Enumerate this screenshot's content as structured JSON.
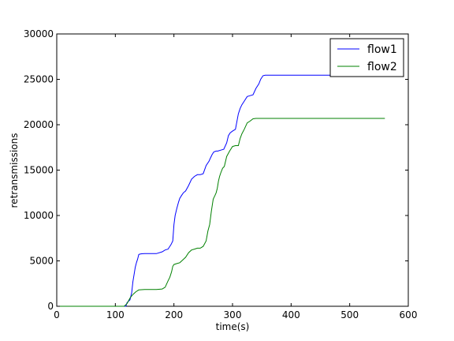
{
  "chart_data": {
    "type": "line",
    "title": "",
    "xlabel": "time(s)",
    "ylabel": "retransmissions",
    "xlim": [
      0,
      600
    ],
    "ylim": [
      0,
      30000
    ],
    "xticks": [
      0,
      100,
      200,
      300,
      400,
      500,
      600
    ],
    "yticks": [
      0,
      5000,
      10000,
      15000,
      20000,
      25000,
      30000
    ],
    "grid": false,
    "legend_position": "top-right",
    "series": [
      {
        "name": "flow1",
        "color": "#0000ff",
        "x": [
          0,
          118,
          120,
          125,
          128,
          130,
          132,
          134,
          136,
          138,
          140,
          142,
          145,
          150,
          160,
          170,
          180,
          185,
          190,
          195,
          198,
          200,
          202,
          205,
          208,
          210,
          213,
          216,
          220,
          225,
          230,
          235,
          240,
          245,
          250,
          255,
          260,
          262,
          265,
          268,
          272,
          275,
          280,
          285,
          290,
          293,
          296,
          300,
          305,
          310,
          313,
          316,
          320,
          325,
          330,
          335,
          340,
          345,
          348,
          352,
          356,
          360,
          380,
          400,
          450,
          500,
          560
        ],
        "y": [
          0,
          0,
          400,
          700,
          1500,
          2700,
          3500,
          4300,
          4800,
          5200,
          5700,
          5750,
          5780,
          5800,
          5800,
          5800,
          6000,
          6200,
          6300,
          6800,
          7200,
          9000,
          10000,
          10800,
          11500,
          11900,
          12200,
          12500,
          12700,
          13300,
          14000,
          14300,
          14500,
          14500,
          14600,
          15500,
          16000,
          16300,
          16700,
          17000,
          17100,
          17100,
          17200,
          17300,
          18000,
          18800,
          19100,
          19300,
          19500,
          21200,
          21800,
          22200,
          22600,
          23100,
          23200,
          23300,
          24000,
          24500,
          25000,
          25400,
          25450,
          25450,
          25450,
          25450,
          25450,
          25450,
          25450
        ]
      },
      {
        "name": "flow2",
        "color": "#008000",
        "x": [
          0,
          115,
          120,
          125,
          130,
          135,
          140,
          150,
          170,
          180,
          185,
          190,
          193,
          196,
          198,
          200,
          205,
          210,
          215,
          220,
          225,
          230,
          235,
          240,
          245,
          250,
          255,
          258,
          261,
          264,
          267,
          270,
          272,
          274,
          276,
          278,
          280,
          283,
          286,
          290,
          295,
          300,
          305,
          310,
          313,
          316,
          320,
          325,
          330,
          335,
          340,
          345,
          350,
          360,
          400,
          500,
          560
        ],
        "y": [
          0,
          0,
          300,
          900,
          1300,
          1600,
          1800,
          1850,
          1850,
          1900,
          2100,
          2800,
          3200,
          3800,
          4400,
          4600,
          4700,
          4800,
          5100,
          5400,
          5900,
          6200,
          6300,
          6400,
          6400,
          6600,
          7200,
          8300,
          9000,
          10500,
          11800,
          12200,
          12500,
          13000,
          13800,
          14300,
          14700,
          15200,
          15400,
          16500,
          17100,
          17600,
          17700,
          17700,
          18500,
          19000,
          19500,
          20200,
          20400,
          20650,
          20700,
          20700,
          20700,
          20700,
          20700,
          20700,
          20700
        ]
      }
    ]
  }
}
